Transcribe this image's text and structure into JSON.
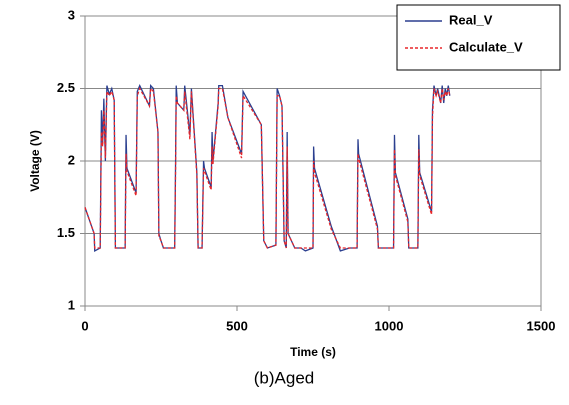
{
  "chart_data": {
    "type": "line",
    "x_label": "Time (s)",
    "y_label": "Voltage (V)",
    "x": [
      0,
      30,
      32,
      50,
      54,
      58,
      62,
      67,
      72,
      80,
      88,
      96,
      100,
      132,
      135,
      138,
      168,
      172,
      180,
      212,
      216,
      225,
      240,
      243,
      250,
      258,
      295,
      298,
      300,
      304,
      325,
      328,
      345,
      350,
      368,
      372,
      385,
      390,
      393,
      415,
      418,
      421,
      438,
      440,
      452,
      470,
      515,
      520,
      580,
      588,
      600,
      628,
      632,
      640,
      648,
      655,
      662,
      665,
      668,
      690,
      710,
      725,
      750,
      752,
      755,
      810,
      840,
      870,
      895,
      898,
      900,
      962,
      965,
      1015,
      1018,
      1021,
      1062,
      1065,
      1095,
      1098,
      1101,
      1140,
      1143,
      1148,
      1155,
      1160,
      1170,
      1175,
      1180,
      1185,
      1190,
      1195,
      1200
    ],
    "series": [
      {
        "name": "Real_V",
        "color": "#2b3f8f",
        "dash": false,
        "values": [
          1.68,
          1.5,
          1.38,
          1.4,
          2.35,
          2.12,
          2.43,
          2.0,
          2.52,
          2.46,
          2.5,
          2.42,
          1.4,
          1.4,
          2.18,
          1.95,
          1.78,
          2.48,
          2.52,
          2.38,
          2.52,
          2.5,
          2.2,
          1.5,
          1.45,
          1.4,
          1.4,
          2.0,
          2.52,
          2.4,
          2.35,
          2.52,
          2.18,
          2.5,
          1.92,
          1.4,
          1.4,
          2.0,
          1.95,
          1.82,
          2.2,
          2.0,
          2.4,
          2.52,
          2.52,
          2.3,
          2.05,
          2.48,
          2.25,
          1.45,
          1.4,
          1.42,
          2.5,
          2.45,
          2.38,
          1.45,
          1.4,
          2.2,
          1.5,
          1.4,
          1.4,
          1.38,
          1.4,
          2.1,
          1.95,
          1.55,
          1.38,
          1.4,
          1.4,
          2.15,
          2.05,
          1.55,
          1.4,
          1.4,
          2.18,
          1.92,
          1.6,
          1.4,
          1.4,
          2.18,
          1.92,
          1.65,
          2.35,
          2.52,
          2.45,
          2.5,
          2.4,
          2.52,
          2.4,
          2.5,
          2.45,
          2.52,
          2.45
        ]
      },
      {
        "name": "Calculate_V",
        "color": "#e8262a",
        "dash": true,
        "values": [
          1.68,
          1.5,
          1.4,
          1.4,
          2.2,
          2.1,
          2.35,
          2.02,
          2.48,
          2.45,
          2.48,
          2.42,
          1.4,
          1.4,
          2.05,
          1.93,
          1.76,
          2.45,
          2.5,
          2.38,
          2.5,
          2.48,
          2.2,
          1.48,
          1.45,
          1.4,
          1.4,
          1.95,
          2.45,
          2.4,
          2.35,
          2.48,
          2.15,
          2.48,
          1.9,
          1.4,
          1.4,
          1.95,
          1.93,
          1.8,
          2.1,
          1.98,
          2.38,
          2.5,
          2.5,
          2.3,
          2.02,
          2.45,
          2.25,
          1.45,
          1.4,
          1.42,
          2.45,
          2.45,
          2.38,
          1.45,
          1.4,
          2.1,
          1.5,
          1.4,
          1.4,
          1.4,
          1.4,
          2.0,
          1.92,
          1.53,
          1.4,
          1.4,
          1.4,
          2.05,
          2.02,
          1.53,
          1.4,
          1.4,
          2.08,
          1.9,
          1.58,
          1.4,
          1.4,
          2.08,
          1.9,
          1.63,
          2.3,
          2.5,
          2.45,
          2.48,
          2.4,
          2.5,
          2.42,
          2.48,
          2.45,
          2.5,
          2.45
        ]
      }
    ],
    "xlim": [
      0,
      1500
    ],
    "xticks": [
      0,
      500,
      1000,
      1500
    ],
    "ylim": [
      1,
      3
    ],
    "yticks": [
      1,
      1.5,
      2,
      2.5,
      3
    ],
    "grid": true,
    "legend": "upper right"
  },
  "caption": "(b)Aged"
}
